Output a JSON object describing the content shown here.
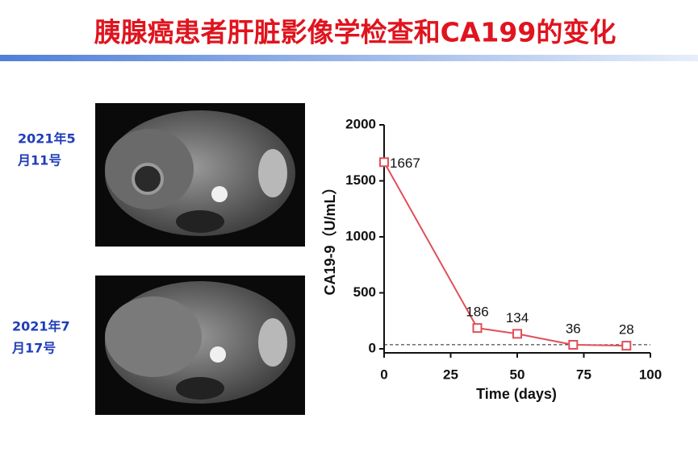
{
  "title": "胰腺癌患者肝脏影像学检查和CA199的变化",
  "images": [
    {
      "date_lines": [
        "2021年5",
        "月11号"
      ]
    },
    {
      "date_lines": [
        "2021年7",
        "月17号"
      ]
    }
  ],
  "chart_data": {
    "type": "line",
    "x_label": "Time (days)",
    "y_label": "CA19-9（U/mL）",
    "x": [
      0,
      35,
      50,
      71,
      91
    ],
    "values": [
      1667,
      186,
      134,
      36,
      28
    ],
    "color": "#e0505a",
    "xlim": [
      0,
      100
    ],
    "xticks": [
      0,
      25,
      50,
      75,
      100
    ],
    "ylim": [
      0,
      2000
    ],
    "yticks": [
      0,
      500,
      1000,
      1500,
      2000
    ],
    "reference_line": 37
  }
}
